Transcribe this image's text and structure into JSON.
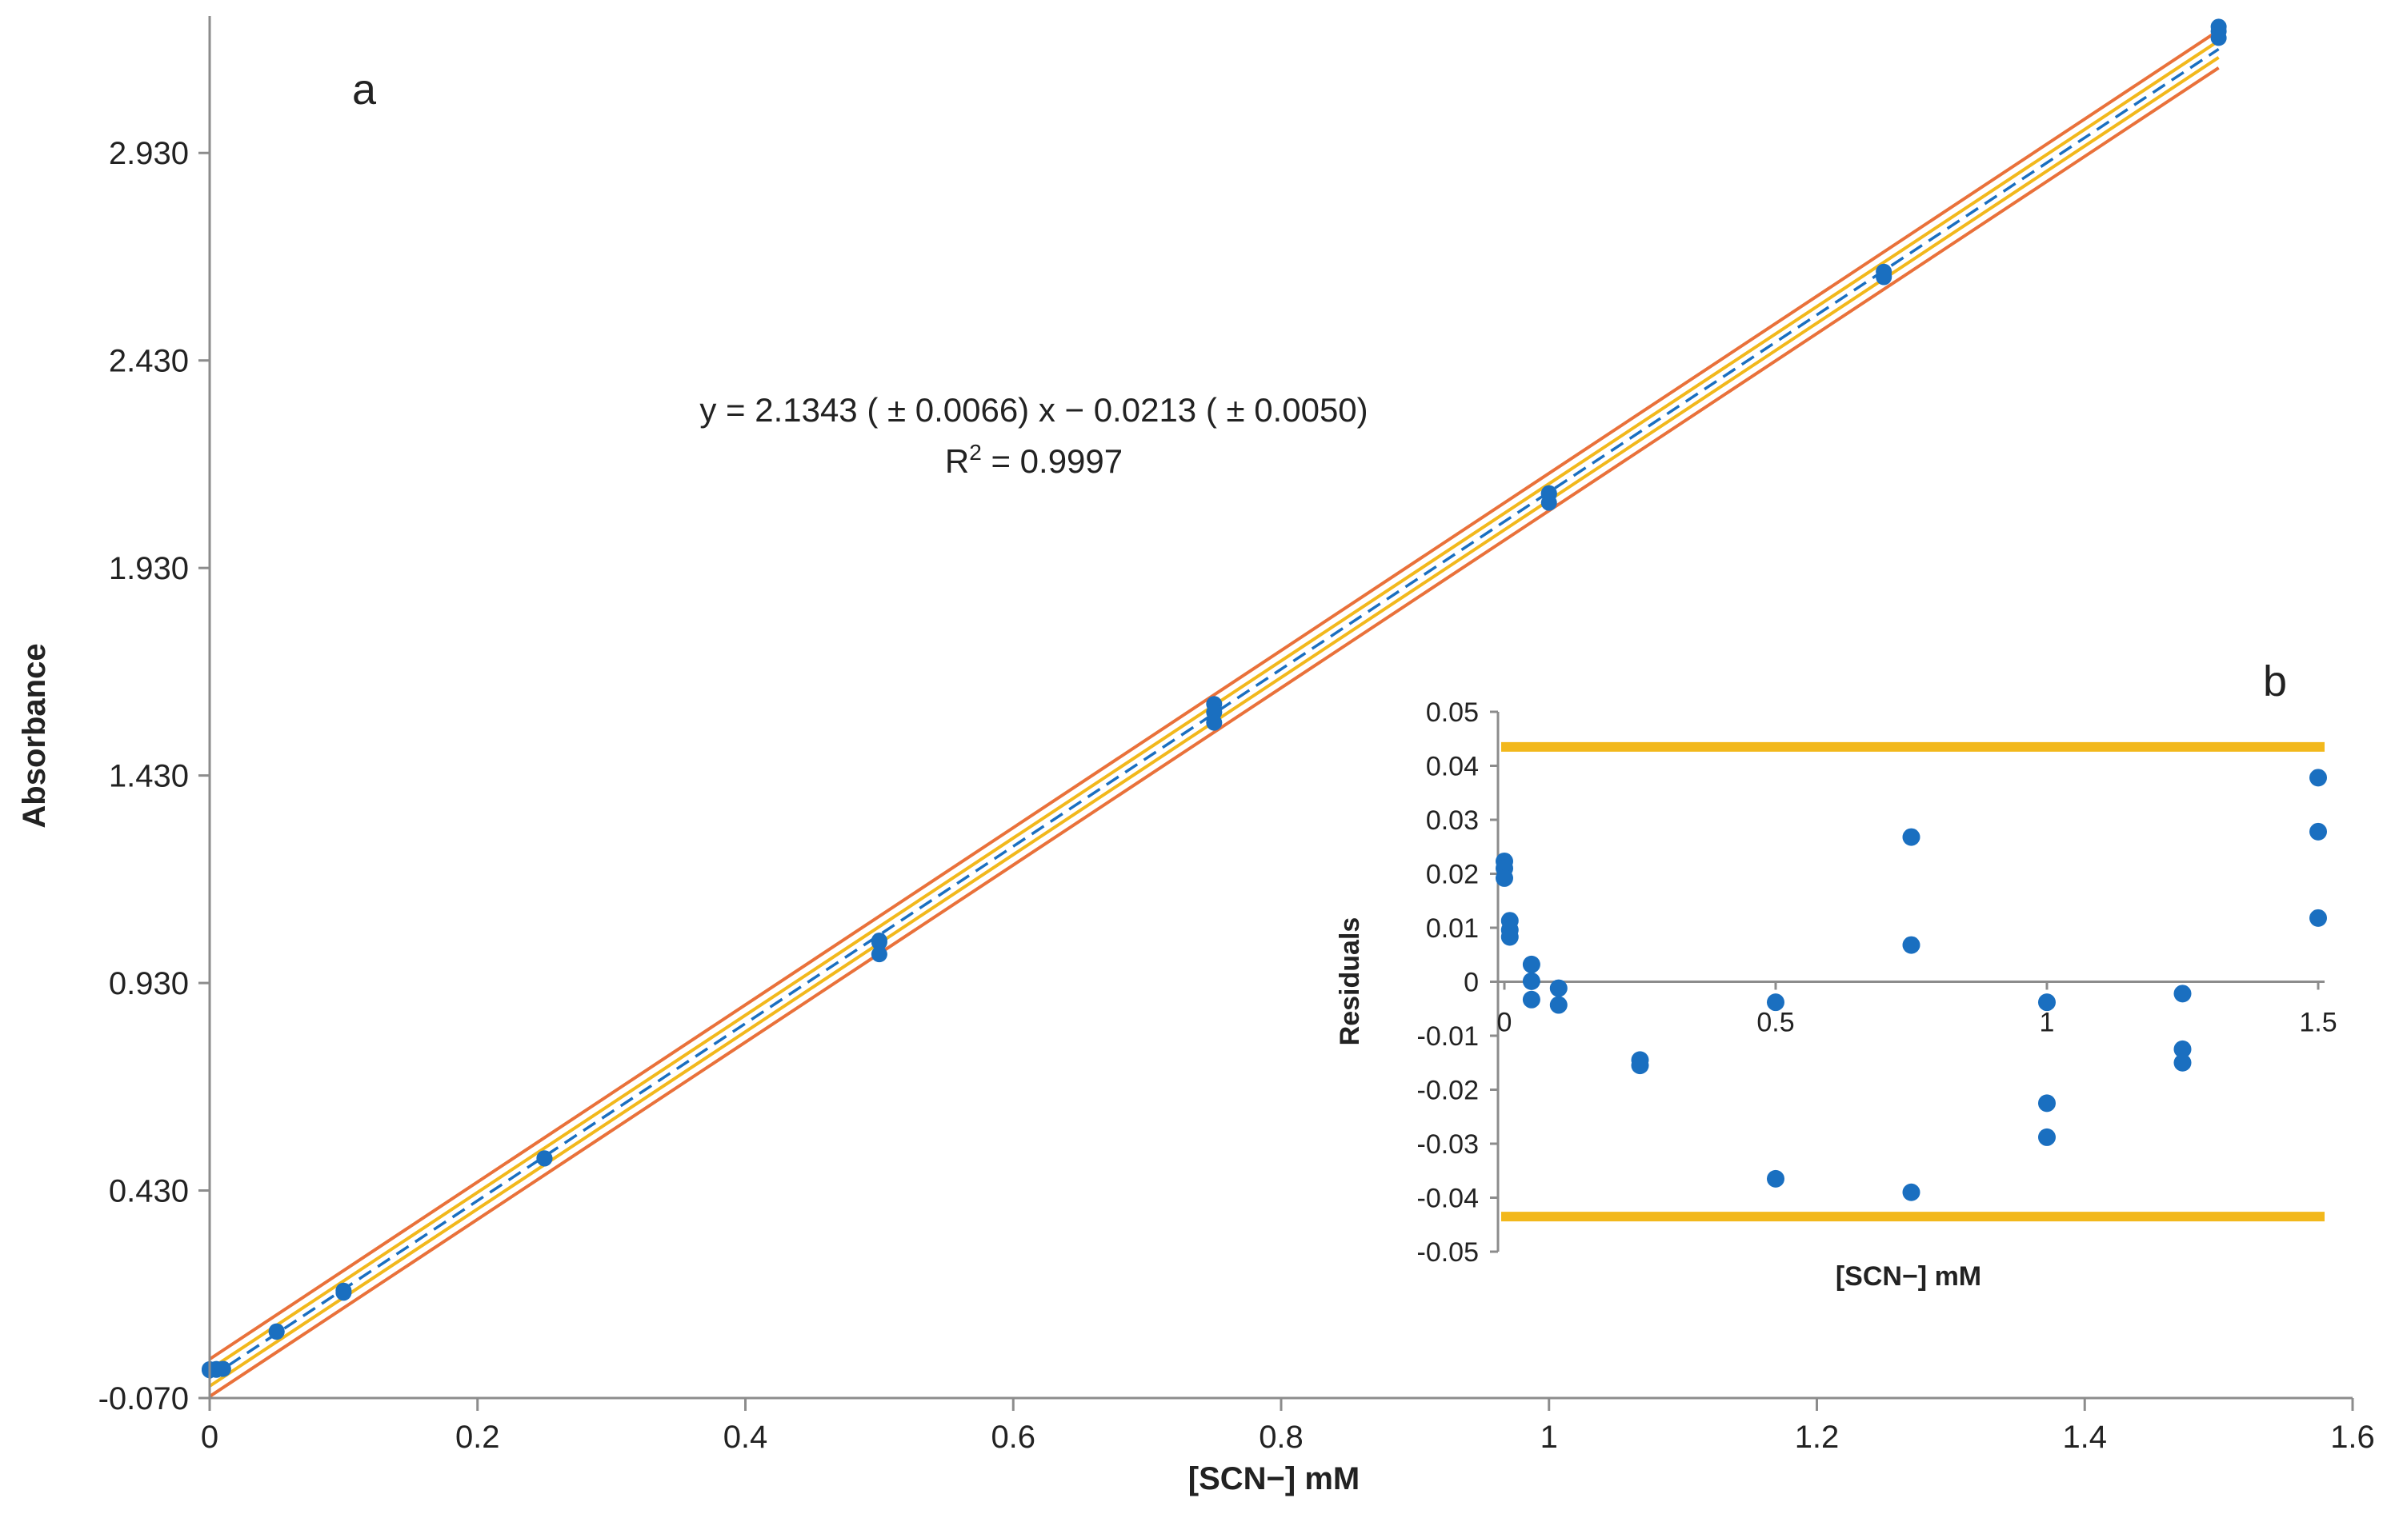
{
  "colors": {
    "points": "#1a6fc0",
    "fit": "#1a6fc0",
    "confidence": "#f2b81c",
    "prediction": "#e9713a",
    "axis": "#8c8c8c",
    "text": "#222222"
  },
  "chart_data": [
    {
      "panel": "a",
      "type": "scatter",
      "xlabel": "[SCN−] mM",
      "ylabel": "Absorbance",
      "xlim": [
        0,
        1.6
      ],
      "ylim": [
        -0.07,
        3.26
      ],
      "xticks": [
        0,
        0.2,
        0.4,
        0.6,
        0.8,
        1,
        1.2,
        1.4,
        1.6
      ],
      "xtick_labels": [
        "0",
        "0.2",
        "0.4",
        "0.6",
        "0.8",
        "1",
        "1.2",
        "1.4",
        "1.6"
      ],
      "yticks": [
        -0.07,
        0.43,
        0.93,
        1.43,
        1.93,
        2.43,
        2.93
      ],
      "ytick_labels": [
        "-0.070",
        "0.430",
        "0.930",
        "1.430",
        "1.930",
        "2.430",
        "2.930"
      ],
      "equation": "y = 2.1343 ( ± 0.0066) x − 0.0213 ( ± 0.0050)",
      "r2_prefix": "R",
      "r2_sup": "2",
      "r2_value": " = 0.9997",
      "fit": {
        "slope": 2.1343,
        "intercept": -0.0213
      },
      "confidence_band_offset": 0.02,
      "prediction_band_offset": 0.045,
      "points": {
        "x": [
          0,
          0,
          0.005,
          0.005,
          0.01,
          0.01,
          0.05,
          0.05,
          0.1,
          0.1,
          0.25,
          0.25,
          0.5,
          0.5,
          0.5,
          0.75,
          0.75,
          0.75,
          1,
          1,
          1,
          1.25,
          1.25,
          1.25,
          1.5,
          1.5,
          1.5
        ],
        "y": [
          -0.0005,
          -0.003,
          0.0002,
          -0.002,
          0.0003,
          0.0002,
          0.0907,
          0.0897,
          0.1887,
          0.1837,
          0.5072,
          0.5077,
          1.0322,
          1.0282,
          0.9992,
          1.6022,
          1.5822,
          1.5572,
          2.1102,
          2.1082,
          2.0872,
          2.6438,
          2.6328,
          2.6308,
          3.2342,
          3.2232,
          3.2072
        ]
      }
    },
    {
      "panel": "b",
      "type": "scatter",
      "xlabel": "[SCN−] mM",
      "ylabel": "Residuals",
      "xlim": [
        0,
        1.5
      ],
      "ylim": [
        -0.05,
        0.05
      ],
      "xticks": [
        0,
        0.5,
        1,
        1.5
      ],
      "xtick_labels": [
        "0",
        "0.5",
        "1",
        "1.5"
      ],
      "yticks": [
        -0.05,
        -0.04,
        -0.03,
        -0.02,
        -0.01,
        0,
        0.01,
        0.02,
        0.03,
        0.04,
        0.05
      ],
      "ytick_labels": [
        "-0.05",
        "-0.04",
        "-0.03",
        "-0.02",
        "-0.01",
        "0",
        "0.01",
        "0.02",
        "0.03",
        "0.04",
        "0.05"
      ],
      "limit_lines": [
        0.0435,
        -0.0435
      ],
      "points": {
        "x": [
          0,
          0,
          0,
          0.01,
          0.01,
          0.01,
          0.05,
          0.05,
          0.05,
          0.1,
          0.1,
          0.25,
          0.25,
          0.5,
          0.5,
          0.75,
          0.75,
          0.75,
          1,
          1,
          1,
          1.25,
          1.25,
          1.25,
          1.5,
          1.5,
          1.5
        ],
        "y": [
          0.0223,
          0.021,
          0.0192,
          0.0113,
          0.0096,
          0.0083,
          0.0032,
          0.0001,
          -0.0033,
          -0.0012,
          -0.0043,
          -0.0145,
          -0.0155,
          -0.0038,
          -0.0365,
          0.0268,
          0.0068,
          -0.039,
          -0.0038,
          -0.0225,
          -0.0288,
          -0.0022,
          -0.0125,
          -0.015,
          0.0378,
          0.0278,
          0.0118
        ]
      }
    }
  ]
}
